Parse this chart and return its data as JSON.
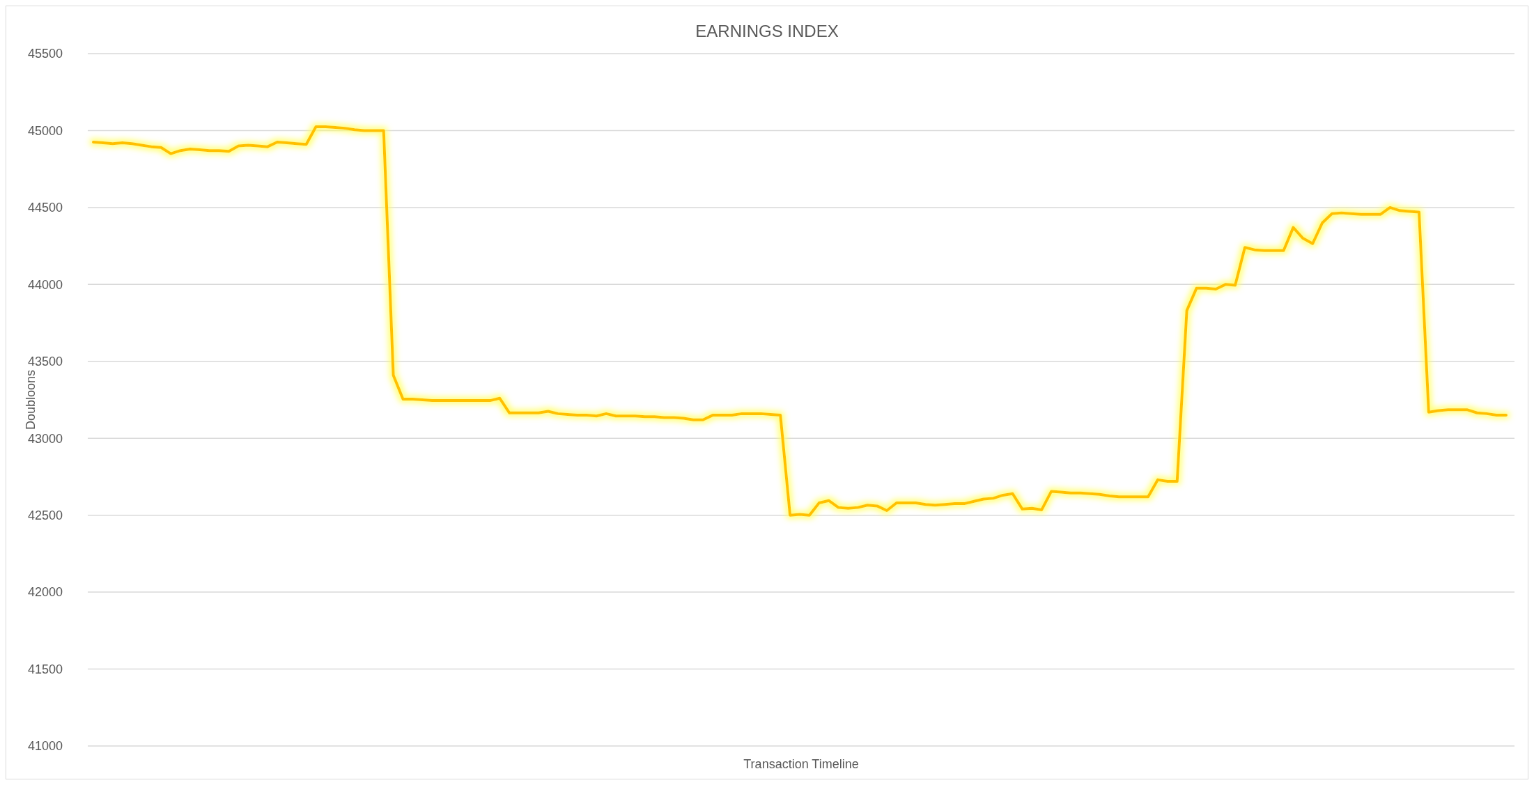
{
  "chart_data": {
    "type": "line",
    "title": "EARNINGS INDEX",
    "xlabel": "Transaction Timeline",
    "ylabel": "Doubloons",
    "categories": [
      null,
      null,
      null,
      null,
      null,
      null,
      null,
      null,
      null,
      null,
      null,
      null,
      null,
      null,
      null,
      null,
      null,
      null,
      null,
      null,
      null,
      null,
      null,
      null,
      null,
      null,
      null,
      null,
      null,
      null,
      null,
      null,
      null,
      null,
      null,
      null,
      null,
      null,
      null,
      null,
      null,
      null,
      null,
      null,
      null,
      null,
      null,
      null,
      null,
      null,
      null,
      null,
      null,
      null,
      null,
      null,
      null,
      null,
      null,
      null,
      null,
      null,
      null,
      null,
      null,
      null,
      null,
      null,
      null,
      null,
      null,
      null,
      null,
      null,
      null,
      null,
      null,
      null,
      null,
      null,
      null,
      null,
      null,
      null,
      null,
      null,
      null,
      null,
      null,
      null,
      null,
      null,
      null,
      null,
      null,
      null,
      null,
      null,
      null,
      null,
      null,
      null,
      null,
      null,
      null,
      null,
      null,
      null,
      null,
      null,
      null,
      null,
      null,
      null,
      null,
      null,
      null,
      null,
      null,
      null,
      null,
      null,
      null,
      null,
      null,
      null,
      null,
      null,
      null,
      null,
      null,
      null,
      null,
      null,
      null,
      null,
      null,
      null,
      null,
      null,
      null,
      null,
      null,
      null,
      null,
      null,
      null
    ],
    "series": [
      {
        "color": "#ffc000",
        "values": [
          44925,
          44920,
          44915,
          44920,
          44915,
          44905,
          44895,
          44890,
          44850,
          44870,
          44880,
          44875,
          44870,
          44870,
          44865,
          44900,
          44905,
          44900,
          44895,
          44925,
          44920,
          44915,
          44910,
          45025,
          45025,
          45020,
          45015,
          45005,
          45000,
          45000,
          45000,
          43410,
          43255,
          43255,
          43250,
          43245,
          43245,
          43245,
          43245,
          43245,
          43245,
          43245,
          43260,
          43165,
          43165,
          43165,
          43165,
          43175,
          43160,
          43155,
          43150,
          43150,
          43145,
          43160,
          43145,
          43145,
          43145,
          43140,
          43140,
          43135,
          43135,
          43130,
          43120,
          43120,
          43150,
          43150,
          43150,
          43160,
          43160,
          43160,
          43155,
          43150,
          42500,
          42505,
          42500,
          42580,
          42595,
          42550,
          42545,
          42550,
          42565,
          42560,
          42530,
          42580,
          42580,
          42580,
          42570,
          42565,
          42570,
          42575,
          42575,
          42590,
          42605,
          42610,
          42630,
          42640,
          42540,
          42545,
          42535,
          42655,
          42650,
          42645,
          42645,
          42640,
          42635,
          42625,
          42620,
          42620,
          42620,
          42620,
          42730,
          42720,
          42720,
          43830,
          43975,
          43975,
          43970,
          44000,
          43995,
          44240,
          44225,
          44220,
          44220,
          44220,
          44370,
          44300,
          44265,
          44400,
          44460,
          44465,
          44460,
          44455,
          44455,
          44455,
          44500,
          44480,
          44475,
          44470,
          43170,
          43180,
          43185,
          43185,
          43185,
          43165,
          43160,
          43150,
          43150
        ]
      }
    ],
    "ylim": [
      41000,
      45500
    ],
    "yticks": [
      41000,
      41500,
      42000,
      42500,
      43000,
      43500,
      44000,
      44500,
      45000,
      45500
    ],
    "grid": "y",
    "marker": "none",
    "line_style": "solid"
  }
}
